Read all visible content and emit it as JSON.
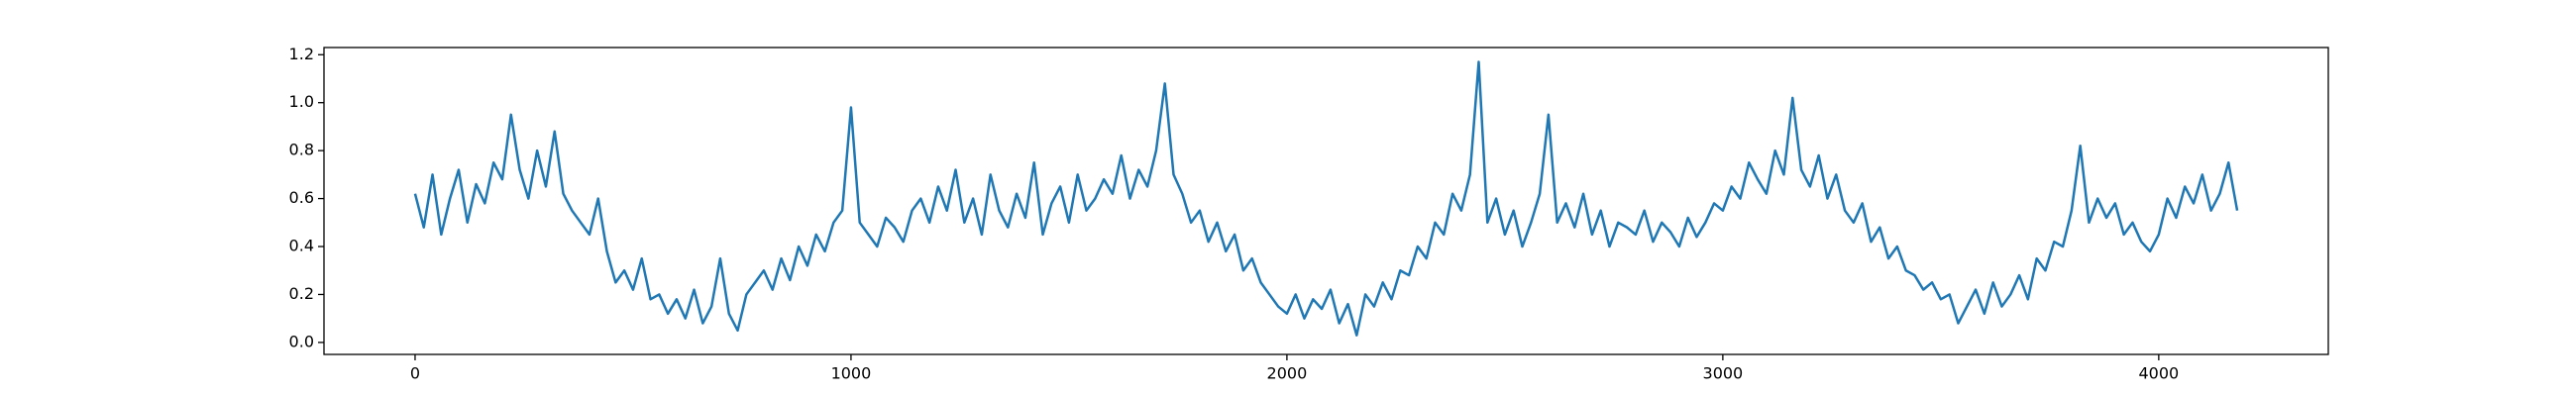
{
  "chart_data": {
    "type": "line",
    "color": "#1f77b4",
    "x": [
      0,
      20,
      40,
      60,
      80,
      100,
      120,
      140,
      160,
      180,
      200,
      220,
      240,
      260,
      280,
      300,
      320,
      340,
      360,
      380,
      400,
      420,
      440,
      460,
      480,
      500,
      520,
      540,
      560,
      580,
      600,
      620,
      640,
      660,
      680,
      700,
      720,
      740,
      760,
      780,
      800,
      820,
      840,
      860,
      880,
      900,
      920,
      940,
      960,
      980,
      1000,
      1020,
      1040,
      1060,
      1080,
      1100,
      1120,
      1140,
      1160,
      1180,
      1200,
      1220,
      1240,
      1260,
      1280,
      1300,
      1320,
      1340,
      1360,
      1380,
      1400,
      1420,
      1440,
      1460,
      1480,
      1500,
      1520,
      1540,
      1560,
      1580,
      1600,
      1620,
      1640,
      1660,
      1680,
      1700,
      1720,
      1740,
      1760,
      1780,
      1800,
      1820,
      1840,
      1860,
      1880,
      1900,
      1920,
      1940,
      1960,
      1980,
      2000,
      2020,
      2040,
      2060,
      2080,
      2100,
      2120,
      2140,
      2160,
      2180,
      2200,
      2220,
      2240,
      2260,
      2280,
      2300,
      2320,
      2340,
      2360,
      2380,
      2400,
      2420,
      2440,
      2460,
      2480,
      2500,
      2520,
      2540,
      2560,
      2580,
      2600,
      2620,
      2640,
      2660,
      2680,
      2700,
      2720,
      2740,
      2760,
      2780,
      2800,
      2820,
      2840,
      2860,
      2880,
      2900,
      2920,
      2940,
      2960,
      2980,
      3000,
      3020,
      3040,
      3060,
      3080,
      3100,
      3120,
      3140,
      3160,
      3180,
      3200,
      3220,
      3240,
      3260,
      3280,
      3300,
      3320,
      3340,
      3360,
      3380,
      3400,
      3420,
      3440,
      3460,
      3480,
      3500,
      3520,
      3540,
      3560,
      3580,
      3600,
      3620,
      3640,
      3660,
      3680,
      3700,
      3720,
      3740,
      3760,
      3780,
      3800,
      3820,
      3840,
      3860,
      3880,
      3900,
      3920,
      3940,
      3960,
      3980,
      4000,
      4020,
      4040,
      4060,
      4080,
      4100,
      4120,
      4140,
      4160,
      4180
    ],
    "values": [
      0.62,
      0.48,
      0.7,
      0.45,
      0.6,
      0.72,
      0.5,
      0.66,
      0.58,
      0.75,
      0.68,
      0.95,
      0.72,
      0.6,
      0.8,
      0.65,
      0.88,
      0.62,
      0.55,
      0.5,
      0.45,
      0.6,
      0.38,
      0.25,
      0.3,
      0.22,
      0.35,
      0.18,
      0.2,
      0.12,
      0.18,
      0.1,
      0.22,
      0.08,
      0.15,
      0.35,
      0.12,
      0.05,
      0.2,
      0.25,
      0.3,
      0.22,
      0.35,
      0.26,
      0.4,
      0.32,
      0.45,
      0.38,
      0.5,
      0.55,
      0.98,
      0.5,
      0.45,
      0.4,
      0.52,
      0.48,
      0.42,
      0.55,
      0.6,
      0.5,
      0.65,
      0.55,
      0.72,
      0.5,
      0.6,
      0.45,
      0.7,
      0.55,
      0.48,
      0.62,
      0.52,
      0.75,
      0.45,
      0.58,
      0.65,
      0.5,
      0.7,
      0.55,
      0.6,
      0.68,
      0.62,
      0.78,
      0.6,
      0.72,
      0.65,
      0.8,
      1.08,
      0.7,
      0.62,
      0.5,
      0.55,
      0.42,
      0.5,
      0.38,
      0.45,
      0.3,
      0.35,
      0.25,
      0.2,
      0.15,
      0.12,
      0.2,
      0.1,
      0.18,
      0.14,
      0.22,
      0.08,
      0.16,
      0.03,
      0.2,
      0.15,
      0.25,
      0.18,
      0.3,
      0.28,
      0.4,
      0.35,
      0.5,
      0.45,
      0.62,
      0.55,
      0.7,
      1.17,
      0.5,
      0.6,
      0.45,
      0.55,
      0.4,
      0.5,
      0.62,
      0.95,
      0.5,
      0.58,
      0.48,
      0.62,
      0.45,
      0.55,
      0.4,
      0.5,
      0.48,
      0.45,
      0.55,
      0.42,
      0.5,
      0.46,
      0.4,
      0.52,
      0.44,
      0.5,
      0.58,
      0.55,
      0.65,
      0.6,
      0.75,
      0.68,
      0.62,
      0.8,
      0.7,
      1.02,
      0.72,
      0.65,
      0.78,
      0.6,
      0.7,
      0.55,
      0.5,
      0.58,
      0.42,
      0.48,
      0.35,
      0.4,
      0.3,
      0.28,
      0.22,
      0.25,
      0.18,
      0.2,
      0.08,
      0.15,
      0.22,
      0.12,
      0.25,
      0.15,
      0.2,
      0.28,
      0.18,
      0.35,
      0.3,
      0.42,
      0.4,
      0.55,
      0.82,
      0.5,
      0.6,
      0.52,
      0.58,
      0.45,
      0.5,
      0.42,
      0.38,
      0.45,
      0.6,
      0.52,
      0.65,
      0.58,
      0.7,
      0.55,
      0.62,
      0.75,
      0.55
    ],
    "xlim": [
      -209,
      4389
    ],
    "ylim": [
      -0.05,
      1.23
    ],
    "xticks": [
      0,
      1000,
      2000,
      3000,
      4000
    ],
    "yticks": [
      {
        "value": 0,
        "label": "0.0"
      },
      0.2,
      0.4,
      0.6,
      0.8,
      {
        "value": 1,
        "label": "1.0"
      },
      1.2
    ]
  }
}
